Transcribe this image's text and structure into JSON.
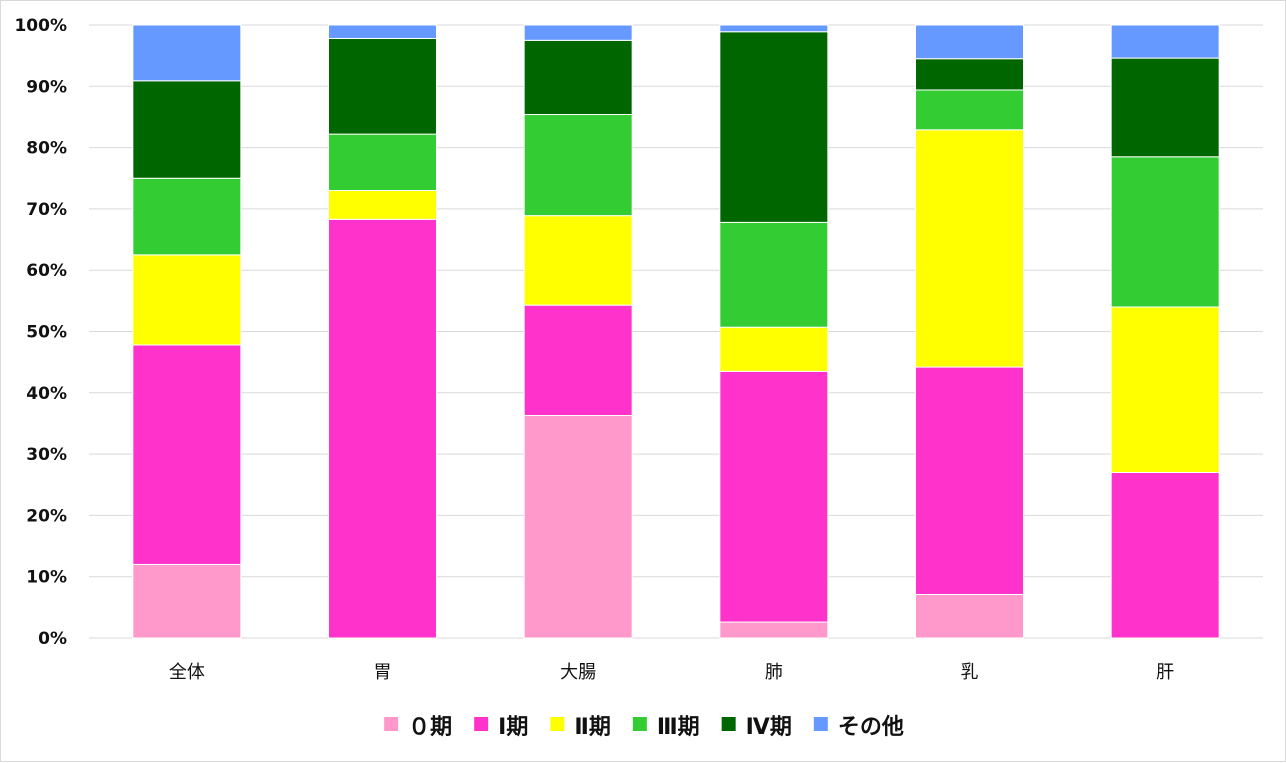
{
  "chart_data": {
    "type": "bar",
    "stacked": true,
    "percent": true,
    "categories": [
      "全体",
      "胃",
      "大腸",
      "肺",
      "乳",
      "肝"
    ],
    "ylim": [
      0,
      100
    ],
    "yticks": [
      "0%",
      "10%",
      "20%",
      "30%",
      "40%",
      "50%",
      "60%",
      "70%",
      "80%",
      "90%",
      "100%"
    ],
    "grid": true,
    "legend_position": "bottom",
    "series": [
      {
        "name": "０期",
        "color": "#ff99cc",
        "values": [
          12.0,
          0.0,
          36.3,
          2.6,
          7.1,
          0.0
        ]
      },
      {
        "name": "Ⅰ期",
        "color": "#ff33cc",
        "values": [
          35.8,
          68.3,
          18.0,
          40.9,
          37.1,
          27.0
        ]
      },
      {
        "name": "Ⅱ期",
        "color": "#ffff00",
        "values": [
          14.7,
          4.7,
          14.6,
          7.2,
          38.7,
          27.0
        ]
      },
      {
        "name": "Ⅲ期",
        "color": "#33cc33",
        "values": [
          12.5,
          9.2,
          16.5,
          17.1,
          6.5,
          24.5
        ]
      },
      {
        "name": "Ⅳ期",
        "color": "#006600",
        "values": [
          15.9,
          15.6,
          12.1,
          31.1,
          5.1,
          16.1
        ]
      },
      {
        "name": "その他",
        "color": "#6699ff",
        "values": [
          9.1,
          2.2,
          2.5,
          1.1,
          5.5,
          5.4
        ]
      }
    ]
  }
}
